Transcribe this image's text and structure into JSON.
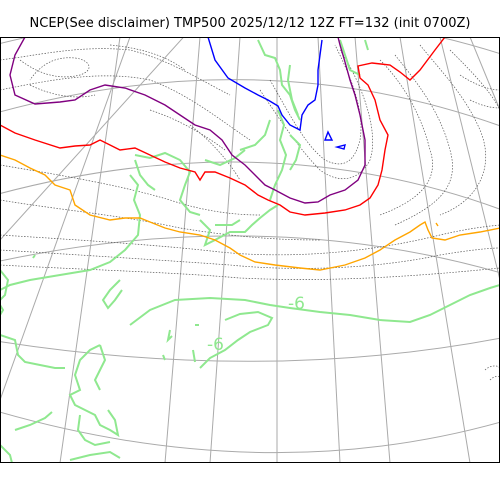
{
  "title": "NCEP(See disclaimer) TMP500 2025/12/12 12Z FT=132 (init 0700Z)",
  "colors": {
    "frame": "#000000",
    "graticule": "#aaaaaa",
    "coast": "#8fe88f",
    "dotted": "#555555",
    "blue": "#0000ff",
    "purple": "#800080",
    "red": "#ff0000",
    "orange": "#ffa500",
    "label": "#8fe88f"
  },
  "contour_labels": [
    "-6",
    "-6"
  ]
}
